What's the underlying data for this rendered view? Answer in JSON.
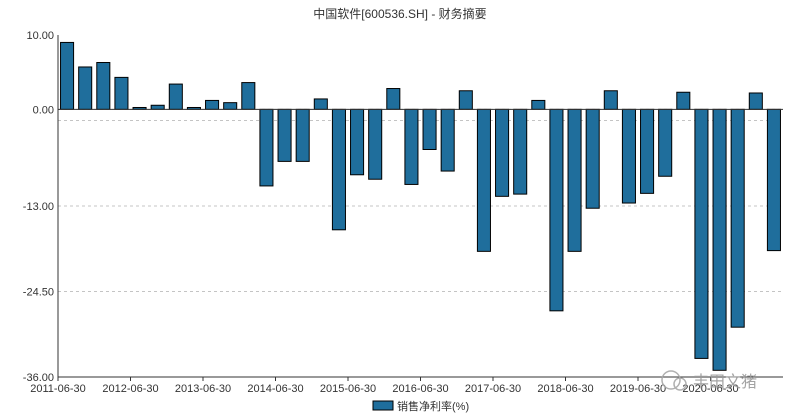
{
  "chart_data": {
    "type": "bar",
    "title": "中国软件[600536.SH] - 财务摘要",
    "categories": [
      "2011-06-30",
      "2011-09-30",
      "2011-12-31",
      "2012-03-31",
      "2012-06-30",
      "2012-09-30",
      "2012-12-31",
      "2013-03-31",
      "2013-06-30",
      "2013-09-30",
      "2013-12-31",
      "2014-03-31",
      "2014-06-30",
      "2014-09-30",
      "2014-12-31",
      "2015-03-31",
      "2015-06-30",
      "2015-09-30",
      "2015-12-31",
      "2016-03-31",
      "2016-06-30",
      "2016-09-30",
      "2016-12-31",
      "2017-03-31",
      "2017-06-30",
      "2017-09-30",
      "2017-12-31",
      "2018-03-31",
      "2018-06-30",
      "2018-09-30",
      "2018-12-31",
      "2019-03-31",
      "2019-06-30",
      "2019-09-30",
      "2019-12-31",
      "2020-03-31",
      "2020-06-30",
      "2020-09-30",
      "2020-12-31",
      "2021-03-31"
    ],
    "x_tick_labels": [
      "2011-06-30",
      "2012-06-30",
      "2013-06-30",
      "2014-06-30",
      "2015-06-30",
      "2016-06-30",
      "2017-06-30",
      "2018-06-30",
      "2019-06-30",
      "2020-06-30"
    ],
    "series": [
      {
        "name": "销售净利率(%)",
        "color": "#1f6e9c",
        "values": [
          9.0,
          5.7,
          6.3,
          4.3,
          0.25,
          0.55,
          3.4,
          0.25,
          1.2,
          0.9,
          3.6,
          -10.3,
          -7.0,
          -7.0,
          1.4,
          -16.2,
          -8.8,
          -9.4,
          2.8,
          -10.1,
          -5.4,
          -8.3,
          2.5,
          -19.1,
          -11.7,
          -11.4,
          1.2,
          -27.1,
          -19.1,
          -13.3,
          2.5,
          -12.6,
          -11.3,
          -9.0,
          2.3,
          -33.5,
          -35.1,
          -29.3,
          2.2,
          -19.0
        ]
      }
    ],
    "ylim": [
      -36.0,
      10.0
    ],
    "y_ticks": [
      10.0,
      0.0,
      -13.0,
      -24.5,
      -36.0
    ],
    "y_tick_labels": [
      "10.00",
      "0.00",
      "-13.00",
      "-24.50",
      "-36.00"
    ],
    "reference_line": -1.5,
    "grid": true,
    "legend_position": "bottom",
    "watermark": "丰田文猪"
  }
}
